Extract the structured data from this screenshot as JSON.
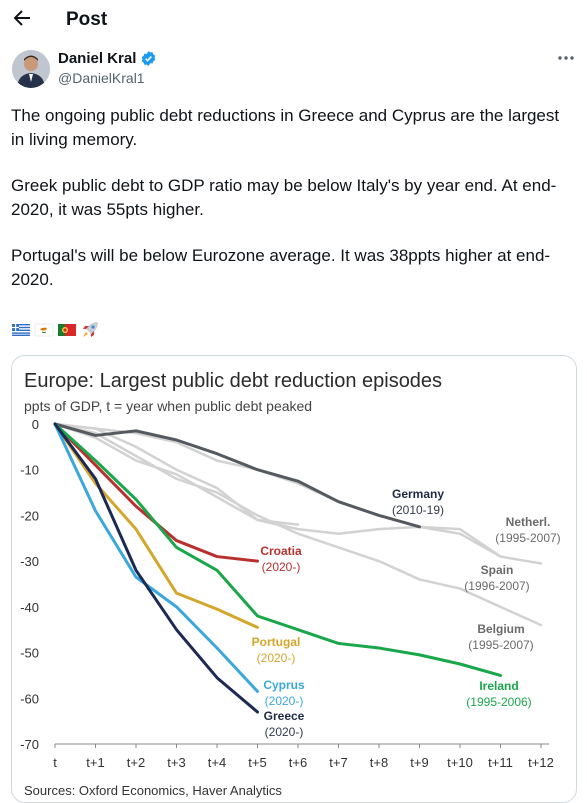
{
  "header": {
    "title": "Post"
  },
  "author": {
    "name": "Daniel Kral",
    "handle": "@DanielKral1"
  },
  "post": {
    "paragraphs": [
      "The ongoing public debt reductions in Greece and Cyprus are the largest in living memory.",
      "Greek public debt to GDP ratio may be below Italy's by year end. At end-2020, it was 55pts higher.",
      "Portugal's will be below Eurozone average. It was 38ppts higher at end-2020."
    ],
    "emoji_names": [
      "greece-flag-icon",
      "cyprus-flag-icon",
      "portugal-flag-icon",
      "rocket-icon"
    ]
  },
  "colors": {
    "greece": "#1b2a55",
    "cyprus": "#3aa8dd",
    "portugal": "#d4a72c",
    "croatia": "#b8312f",
    "ireland": "#1aa64a",
    "germany": "#555a60",
    "grey": "#d2d2d2",
    "verified": "#1d9bf0"
  },
  "chart_data": {
    "type": "line",
    "title": "Europe: Largest public debt reduction episodes",
    "subtitle": "ppts of GDP, t = year when public debt peaked",
    "source": "Sources: Oxford Economics, Haver Analytics",
    "xlabel": "",
    "ylabel": "",
    "ylim": [
      -70,
      0
    ],
    "x_categories": [
      "t",
      "t+1",
      "t+2",
      "t+3",
      "t+4",
      "t+5",
      "t+6",
      "t+7",
      "t+8",
      "t+9",
      "t+10",
      "t+11",
      "t+12"
    ],
    "y_ticks": [
      0,
      -10,
      -20,
      -30,
      -40,
      -50,
      -60,
      -70
    ],
    "series": [
      {
        "name": "Netherl.",
        "period": "(1995-2007)",
        "color": "grey",
        "bold": false,
        "values": [
          0,
          -1,
          -2,
          -4,
          -8,
          -10,
          -13,
          -17,
          -20,
          -22.5,
          -24,
          -29,
          -30.5
        ]
      },
      {
        "name": "Spain",
        "period": "(1996-2007)",
        "color": "grey",
        "bold": false,
        "values": [
          0,
          -1,
          -5,
          -10,
          -14,
          -21,
          -23,
          -24,
          -23,
          -22.5,
          -23,
          -29
        ]
      },
      {
        "name": "Belgium",
        "period": "(1995-2007)",
        "color": "grey",
        "bold": false,
        "values": [
          0,
          -2,
          -7,
          -12,
          -15,
          -20,
          -24,
          -27,
          -30,
          -34,
          -36,
          -40,
          -44
        ]
      },
      {
        "name": "",
        "period": "",
        "color": "grey",
        "bold": false,
        "values": [
          0,
          -3,
          -8,
          -11,
          -16,
          -21,
          -22
        ]
      },
      {
        "name": "Germany",
        "period": "(2010-19)",
        "color": "germany",
        "bold": true,
        "values": [
          0,
          -2.5,
          -1.5,
          -3.5,
          -6.5,
          -10,
          -12.5,
          -17,
          -20,
          -22.5
        ]
      },
      {
        "name": "Croatia",
        "period": "(2020-)",
        "color": "croatia",
        "bold": true,
        "values": [
          0,
          -9,
          -18,
          -25.5,
          -29,
          -30
        ]
      },
      {
        "name": "Portugal",
        "period": "(2020-)",
        "color": "portugal",
        "bold": true,
        "values": [
          0,
          -13,
          -23,
          -37,
          -40.5,
          -44.5
        ]
      },
      {
        "name": "Ireland",
        "period": "(1995-2006)",
        "color": "ireland",
        "bold": true,
        "values": [
          0,
          -8,
          -16.5,
          -27,
          -32,
          -42,
          -45,
          -48,
          -49,
          -50.5,
          -52.5,
          -55
        ]
      },
      {
        "name": "Cyprus",
        "period": "(2020-)",
        "color": "cyprus",
        "bold": true,
        "values": [
          0,
          -19,
          -33.5,
          -40,
          -49,
          -58.5
        ]
      },
      {
        "name": "Greece",
        "period": "(2020-)",
        "color": "greece",
        "bold": true,
        "values": [
          0,
          -12,
          -32,
          -45,
          -55.5,
          -63
        ]
      }
    ]
  }
}
